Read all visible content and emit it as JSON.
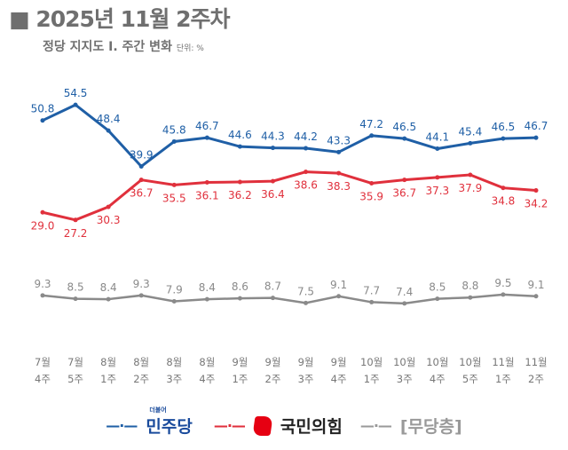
{
  "title": "■ 2025년 11월 2주차",
  "subtitle": "정당 지지도 Ⅰ. 주간 변화",
  "unit": "단위: %",
  "chart_data": {
    "type": "line",
    "categories": [
      "7월\n4주",
      "7월\n5주",
      "8월\n1주",
      "8월\n2주",
      "8월\n3주",
      "8월\n4주",
      "9월\n1주",
      "9월\n2주",
      "9월\n3주",
      "9월\n4주",
      "10월\n1주",
      "10월\n3주",
      "10월\n4주",
      "10월\n5주",
      "11월\n1주",
      "11월\n2주"
    ],
    "ylim": [
      0,
      60
    ],
    "grid": false,
    "legend": "bottom",
    "series": [
      {
        "name": "민주당",
        "color": "#1f5fa6",
        "label_pos": "above",
        "values": [
          50.8,
          54.5,
          48.4,
          39.9,
          45.8,
          46.7,
          44.6,
          44.3,
          44.2,
          43.3,
          47.2,
          46.5,
          44.1,
          45.4,
          46.5,
          46.7
        ]
      },
      {
        "name": "국민의힘",
        "color": "#e0303c",
        "label_pos": "below",
        "values": [
          29.0,
          27.2,
          30.3,
          36.7,
          35.5,
          36.1,
          36.2,
          36.4,
          38.6,
          38.3,
          35.9,
          36.7,
          37.3,
          37.9,
          34.8,
          34.2
        ]
      },
      {
        "name": "[무당층]",
        "color": "#8a8a8a",
        "label_pos": "above",
        "values": [
          9.3,
          8.5,
          8.4,
          9.3,
          7.9,
          8.4,
          8.6,
          8.7,
          7.5,
          9.1,
          7.7,
          7.4,
          8.5,
          8.8,
          9.5,
          9.1
        ]
      }
    ]
  },
  "legend": {
    "marker": "—·—",
    "logo_small": "더불어"
  }
}
